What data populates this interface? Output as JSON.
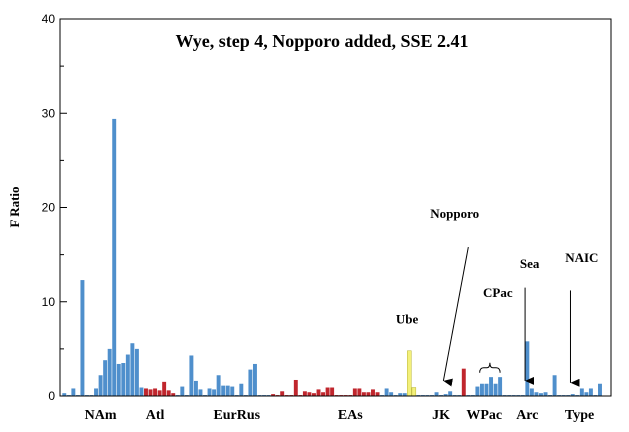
{
  "chart_data": {
    "type": "bar",
    "title": "Wye, step 4, Nopporo added, SSE 2.41",
    "xlabel": "",
    "ylabel": "F Ratio",
    "ylim": [
      0,
      40
    ],
    "yticks": [
      0,
      10,
      20,
      30,
      40
    ],
    "grid": false,
    "colors": {
      "blue": "#4f8fcc",
      "red": "#c0262d",
      "yellow": "#f3f07a",
      "axis": "#000000"
    },
    "bar_groups": [
      {
        "color": "blue",
        "x_start": 0,
        "values": [
          0.3,
          0.1,
          0.8,
          0.1,
          12.3,
          0.1,
          0.1,
          0.8,
          2.2,
          3.8,
          5.0,
          29.4,
          3.4,
          3.5,
          4.4,
          5.6,
          5.0,
          0.9
        ]
      },
      {
        "color": "red",
        "x_start": 18,
        "values": [
          0.8,
          0.7,
          0.8,
          0.6,
          1.5,
          0.6,
          0.3
        ]
      },
      {
        "color": "blue",
        "x_start": 25,
        "values": [
          0.1,
          1.0,
          0.1,
          4.3,
          1.6,
          0.7,
          0.1,
          0.8,
          0.7,
          2.2,
          1.1,
          1.1,
          1.0,
          0.1,
          1.3,
          0.1,
          2.8,
          3.4,
          0.1,
          0.1,
          0.1
        ]
      },
      {
        "color": "red",
        "x_start": 46,
        "values": [
          0.2,
          0.1,
          0.5,
          0.1,
          0.1,
          1.7,
          0.1,
          0.5,
          0.4,
          0.3,
          0.7,
          0.4,
          0.9,
          0.9,
          0.1,
          0.1,
          0.1,
          0.1,
          0.8,
          0.8,
          0.4,
          0.4,
          0.7,
          0.4
        ]
      },
      {
        "color": "blue",
        "x_start": 70,
        "values": [
          0.1,
          0.8,
          0.4,
          0.1,
          0.3,
          0.3
        ]
      },
      {
        "color": "yellow",
        "x_start": 76,
        "values": [
          4.8,
          0.9
        ]
      },
      {
        "color": "blue",
        "x_start": 78,
        "values": [
          0.1,
          0.1,
          0.1,
          0.1,
          0.4,
          0.1,
          0.2,
          0.5,
          0.1,
          0.1
        ]
      },
      {
        "color": "red",
        "x_start": 88,
        "values": [
          2.9
        ]
      },
      {
        "color": "blue",
        "x_start": 89,
        "values": [
          0.1,
          0.1,
          1.0,
          1.3,
          1.3,
          2.0,
          1.3,
          2.0,
          0.1,
          0.1,
          0.1,
          0.1,
          0.1,
          5.8,
          0.8,
          0.4,
          0.3,
          0.4,
          0.1,
          2.2,
          0.1,
          0.1,
          0.1,
          0.2,
          0.1,
          0.8,
          0.4,
          0.8,
          0.1,
          1.3
        ]
      }
    ],
    "x_count": 119,
    "category_labels": [
      {
        "text": "NAm",
        "x": 8.5
      },
      {
        "text": "Atl",
        "x": 20.5
      },
      {
        "text": "EurRus",
        "x": 38.5
      },
      {
        "text": "EAs",
        "x": 63.5
      },
      {
        "text": "JK",
        "x": 83.5
      },
      {
        "text": "WPac",
        "x": 93
      },
      {
        "text": "Arc",
        "x": 102.5
      },
      {
        "text": "Type",
        "x": 114
      }
    ],
    "annotations": [
      {
        "text": "Ube",
        "x": 76,
        "y": 7.7,
        "arrow": false
      },
      {
        "text": "Nopporo",
        "x": 86.5,
        "y": 18.9,
        "arrow": true,
        "tail": [
          89.5,
          15.8
        ],
        "head": [
          84,
          1.6
        ]
      },
      {
        "text": "CPac",
        "x": 96,
        "y": 10.5,
        "arrow": false,
        "brace": [
          92,
          96.5,
          3.0
        ]
      },
      {
        "text": "Sea",
        "x": 103,
        "y": 13.6,
        "arrow": true,
        "tail": [
          102,
          11.5
        ],
        "head": [
          102,
          1.6
        ]
      },
      {
        "text": "NAIC",
        "x": 114.5,
        "y": 14.2,
        "arrow": true,
        "tail": [
          112,
          11.2
        ],
        "head": [
          112,
          1.4
        ]
      }
    ]
  }
}
